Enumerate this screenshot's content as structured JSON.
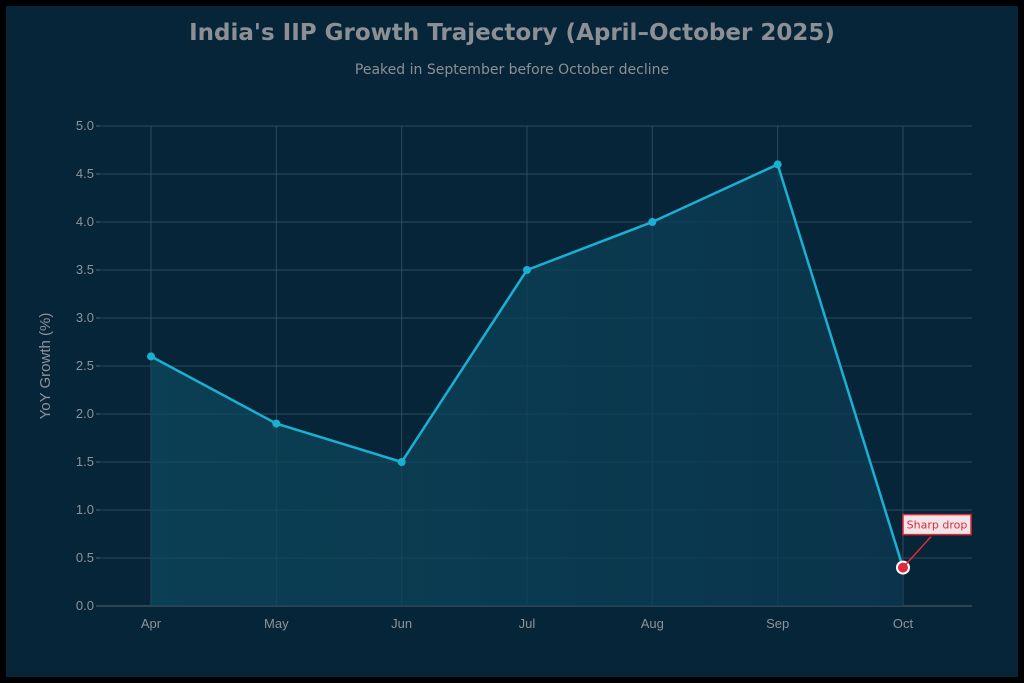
{
  "chart_data": {
    "type": "area",
    "title": "India's IIP Growth Trajectory (April–October 2025)",
    "subtitle": "Peaked in September before October decline",
    "xlabel": "",
    "ylabel": "YoY Growth (%)",
    "categories": [
      "Apr",
      "May",
      "Jun",
      "Jul",
      "Aug",
      "Sep",
      "Oct"
    ],
    "values": [
      2.6,
      1.9,
      1.5,
      3.5,
      4.0,
      4.6,
      0.4
    ],
    "ylim": [
      0,
      5
    ],
    "yticks": [
      "0.0",
      "0.5",
      "1.0",
      "1.5",
      "2.0",
      "2.5",
      "3.0",
      "3.5",
      "4.0",
      "4.5",
      "5.0"
    ],
    "grid": true,
    "annotation": {
      "text": "Sharp drop",
      "category": "Oct",
      "value": 0.4
    },
    "colors": {
      "line": "#1ab0d4",
      "highlight": "#e02a3c",
      "background": "#072539"
    }
  }
}
